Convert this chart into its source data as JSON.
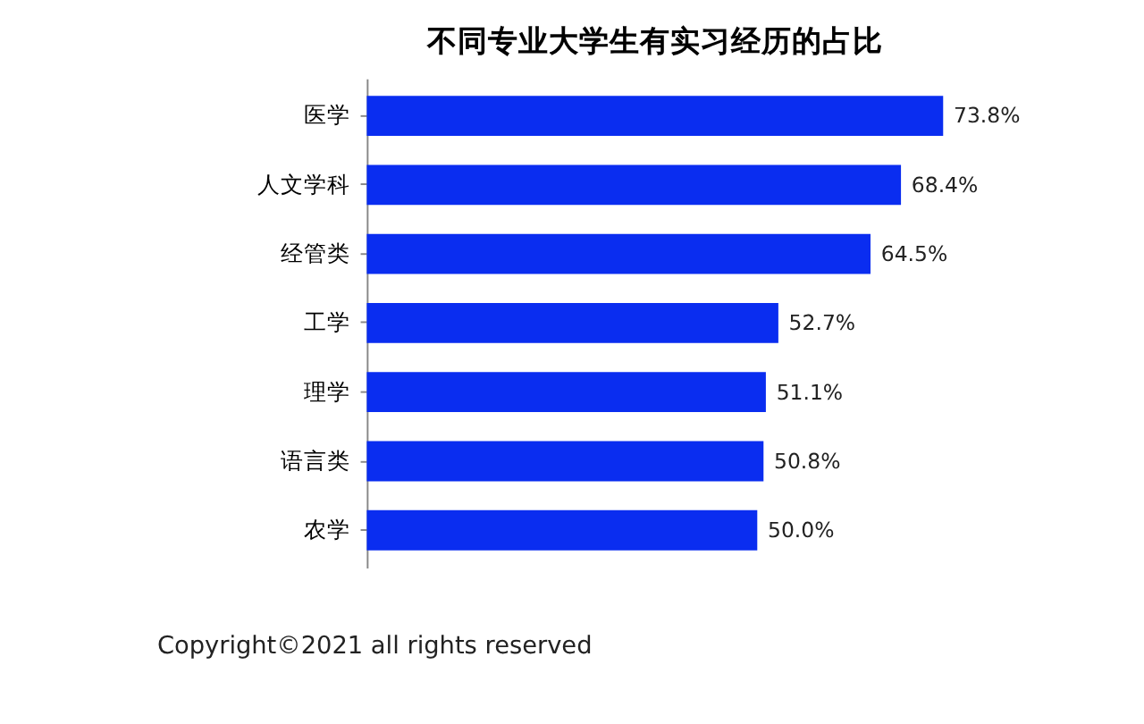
{
  "chart_data": {
    "type": "bar",
    "orientation": "horizontal",
    "title": "不同专业大学生有实习经历的占比",
    "categories": [
      "医学",
      "人文学科",
      "经管类",
      "工学",
      "理学",
      "语言类",
      "农学"
    ],
    "values": [
      73.8,
      68.4,
      64.5,
      52.7,
      51.1,
      50.8,
      50.0
    ],
    "value_labels": [
      "73.8%",
      "68.4%",
      "64.5%",
      "52.7%",
      "51.1%",
      "50.8%",
      "50.0%"
    ],
    "color": "#0a2df0",
    "grid": false,
    "annotations": [
      "Copyright©2021 all rights reserved"
    ]
  }
}
